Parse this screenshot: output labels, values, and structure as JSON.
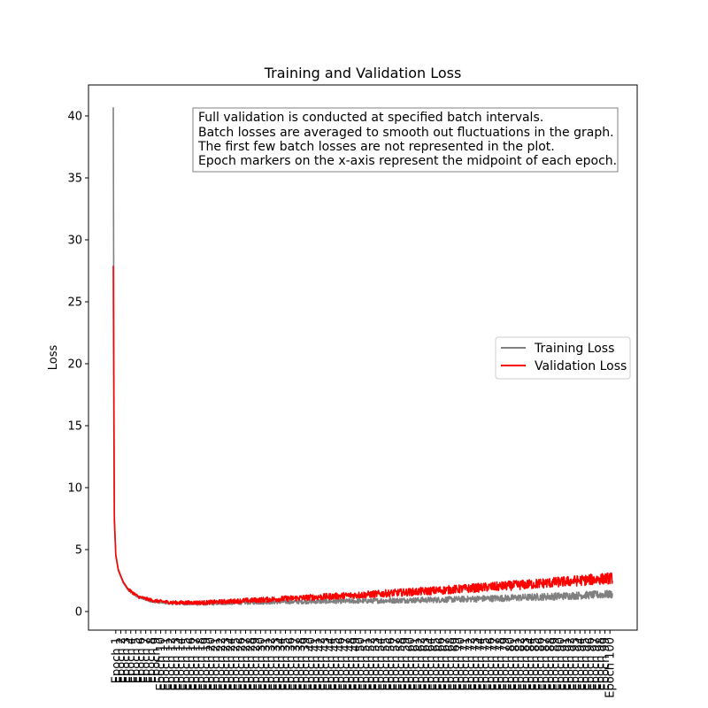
{
  "chart_data": {
    "type": "line",
    "title": "Training and Validation Loss",
    "xlabel": "",
    "ylabel": "Loss",
    "ylim": [
      -1.5,
      42.5
    ],
    "yticks": [
      0,
      5,
      10,
      15,
      20,
      25,
      30,
      35,
      40
    ],
    "grid": false,
    "legend_position": "center-right",
    "annotation_lines": [
      "Full validation is conducted at specified batch intervals.",
      "Batch losses are averaged to smooth out fluctuations in the graph.",
      "The first few batch losses are not represented in the plot.",
      "Epoch markers on the x-axis represent the midpoint of each epoch."
    ],
    "epochs": 100,
    "epoch_label_prefix": "Epoch ",
    "series": [
      {
        "name": "Training Loss",
        "color": "#808080",
        "start_value": 40.7,
        "x": [
          0,
          0.2,
          0.5,
          1,
          2,
          3,
          5,
          8,
          12,
          18,
          25,
          35,
          50,
          65,
          80,
          100
        ],
        "values": [
          40.7,
          8.0,
          4.5,
          3.3,
          2.3,
          1.7,
          1.15,
          0.8,
          0.65,
          0.62,
          0.7,
          0.78,
          0.85,
          0.95,
          1.1,
          1.4
        ],
        "noise_amplitude": 0.25
      },
      {
        "name": "Validation Loss",
        "color": "#ff0000",
        "start_value": 27.9,
        "x": [
          0,
          0.2,
          0.5,
          1,
          2,
          3,
          5,
          8,
          12,
          18,
          25,
          35,
          50,
          65,
          80,
          100
        ],
        "values": [
          27.9,
          7.5,
          4.6,
          3.4,
          2.4,
          1.8,
          1.2,
          0.88,
          0.72,
          0.72,
          0.85,
          1.05,
          1.35,
          1.7,
          2.1,
          2.7
        ],
        "noise_amplitude": 0.35
      }
    ]
  }
}
